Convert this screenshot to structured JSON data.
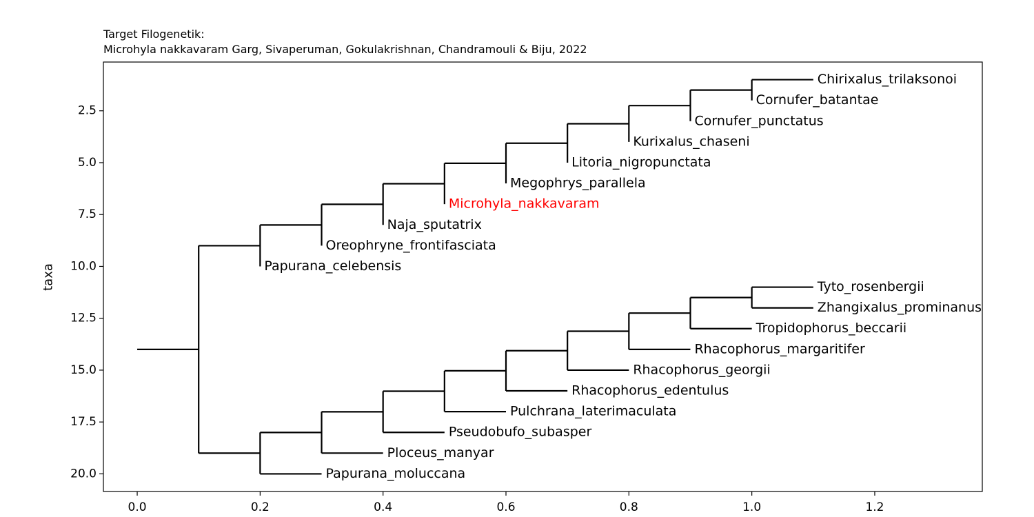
{
  "chart_data": {
    "type": "tree",
    "title_line1": "Target Filogenetik:",
    "title_line2": "Microhyla nakkavaram Garg, Sivaperuman, Gokulakrishnan, Chandramouli & Biju, 2022",
    "xlabel": "",
    "ylabel": "taxa",
    "xlim": [
      -0.055,
      1.375
    ],
    "ylim": [
      20.85,
      0.15
    ],
    "xticks": [
      0.0,
      0.2,
      0.4,
      0.6,
      0.8,
      1.0,
      1.2
    ],
    "xtick_labels": [
      "0.0",
      "0.2",
      "0.4",
      "0.6",
      "0.8",
      "1.0",
      "1.2"
    ],
    "yticks": [
      2.5,
      5.0,
      7.5,
      10.0,
      12.5,
      15.0,
      17.5,
      20.0
    ],
    "ytick_labels": [
      "2.5",
      "5.0",
      "7.5",
      "10.0",
      "12.5",
      "15.0",
      "17.5",
      "20.0"
    ],
    "highlight_color": "#ff0000",
    "line_color": "#000000",
    "leaves": [
      {
        "name": "Chirixalus_trilaksonoi",
        "x": 1.1,
        "y": 1,
        "highlight": false
      },
      {
        "name": "Cornufer_batantae",
        "x": 1.0,
        "y": 2,
        "highlight": false
      },
      {
        "name": "Cornufer_punctatus",
        "x": 0.9,
        "y": 3,
        "highlight": false
      },
      {
        "name": "Kurixalus_chaseni",
        "x": 0.8,
        "y": 4,
        "highlight": false
      },
      {
        "name": "Litoria_nigropunctata",
        "x": 0.7,
        "y": 5,
        "highlight": false
      },
      {
        "name": "Megophrys_parallela",
        "x": 0.6,
        "y": 6,
        "highlight": false
      },
      {
        "name": "Microhyla_nakkavaram",
        "x": 0.5,
        "y": 7,
        "highlight": true
      },
      {
        "name": "Naja_sputatrix",
        "x": 0.4,
        "y": 8,
        "highlight": false
      },
      {
        "name": "Oreophryne_frontifasciata",
        "x": 0.3,
        "y": 9,
        "highlight": false
      },
      {
        "name": "Papurana_celebensis",
        "x": 0.2,
        "y": 10,
        "highlight": false
      },
      {
        "name": "Tyto_rosenbergii",
        "x": 1.1,
        "y": 11,
        "highlight": false
      },
      {
        "name": "Zhangixalus_prominanus",
        "x": 1.1,
        "y": 12,
        "highlight": false
      },
      {
        "name": "Tropidophorus_beccarii",
        "x": 1.0,
        "y": 13,
        "highlight": false
      },
      {
        "name": "Rhacophorus_margaritifer",
        "x": 0.9,
        "y": 14,
        "highlight": false
      },
      {
        "name": "Rhacophorus_georgii",
        "x": 0.8,
        "y": 15,
        "highlight": false
      },
      {
        "name": "Rhacophorus_edentulus",
        "x": 0.7,
        "y": 16,
        "highlight": false
      },
      {
        "name": "Pulchrana_laterimaculata",
        "x": 0.6,
        "y": 17,
        "highlight": false
      },
      {
        "name": "Pseudobufo_subasper",
        "x": 0.5,
        "y": 18,
        "highlight": false
      },
      {
        "name": "Ploceus_manyar",
        "x": 0.4,
        "y": 19,
        "highlight": false
      },
      {
        "name": "Papurana_moluccana",
        "x": 0.3,
        "y": 20,
        "highlight": false
      }
    ],
    "internal_nodes": [
      {
        "x": 1.0,
        "y": 1.5,
        "children": [
          1,
          2
        ],
        "parent_x": 0.9
      },
      {
        "x": 0.9,
        "y": 2.25,
        "children": [
          1.5,
          3
        ],
        "parent_x": 0.8
      },
      {
        "x": 0.8,
        "y": 3.125,
        "children": [
          2.25,
          4
        ],
        "parent_x": 0.7
      },
      {
        "x": 0.7,
        "y": 4.0625,
        "children": [
          3.125,
          5
        ],
        "parent_x": 0.6
      },
      {
        "x": 0.6,
        "y": 5.03125,
        "children": [
          4.0625,
          6
        ],
        "parent_x": 0.5
      },
      {
        "x": 0.5,
        "y": 6.015625,
        "children": [
          5.03125,
          7
        ],
        "parent_x": 0.4
      },
      {
        "x": 0.4,
        "y": 7.0078125,
        "children": [
          6.015625,
          8
        ],
        "parent_x": 0.3
      },
      {
        "x": 0.3,
        "y": 8.00390625,
        "children": [
          7.0078125,
          9
        ],
        "parent_x": 0.2
      },
      {
        "x": 0.2,
        "y": 9.001953125,
        "children": [
          8.00390625,
          10
        ],
        "parent_x": 0.1
      },
      {
        "x": 1.0,
        "y": 11.5,
        "children": [
          11,
          12
        ],
        "parent_x": 0.9
      },
      {
        "x": 0.9,
        "y": 12.25,
        "children": [
          11.5,
          13
        ],
        "parent_x": 0.8
      },
      {
        "x": 0.8,
        "y": 13.125,
        "children": [
          12.25,
          14
        ],
        "parent_x": 0.7
      },
      {
        "x": 0.7,
        "y": 14.0625,
        "children": [
          13.125,
          15
        ],
        "parent_x": 0.6
      },
      {
        "x": 0.6,
        "y": 15.03125,
        "children": [
          14.0625,
          16
        ],
        "parent_x": 0.5
      },
      {
        "x": 0.5,
        "y": 16.015625,
        "children": [
          15.03125,
          17
        ],
        "parent_x": 0.4
      },
      {
        "x": 0.4,
        "y": 17.0078125,
        "children": [
          16.015625,
          18
        ],
        "parent_x": 0.3
      },
      {
        "x": 0.3,
        "y": 18.00390625,
        "children": [
          17.0078125,
          19
        ],
        "parent_x": 0.2
      },
      {
        "x": 0.2,
        "y": 19.001953125,
        "children": [
          18.00390625,
          20
        ],
        "parent_x": 0.1
      },
      {
        "x": 0.1,
        "y": 14.0009765625,
        "children": [
          9.001953125,
          19.001953125
        ],
        "parent_x": 0.0
      }
    ]
  }
}
